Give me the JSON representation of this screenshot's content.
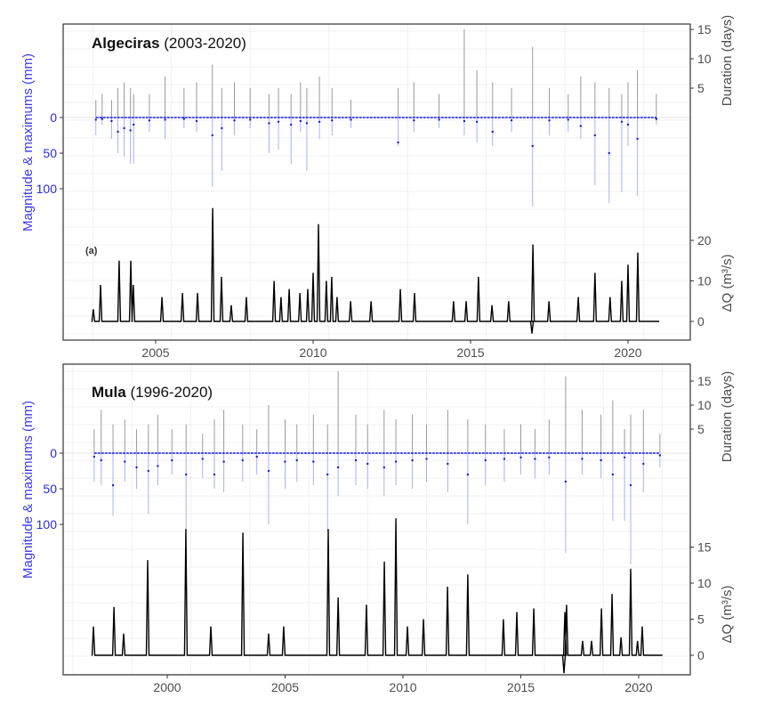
{
  "chart_data": [
    {
      "type": "line",
      "title_bold": "Algeciras",
      "title_rest": " (2003-2020)",
      "panel_label": "(a)",
      "ylabel_left": "Magnitude & maximums (mm)",
      "ylabel_right_top": "Duration (days)",
      "ylabel_right_bottom": "ΔQ (m³/s)",
      "x_ticks": [
        "2005",
        "2010",
        "2015",
        "2020"
      ],
      "magnitude_ticks": [
        "0",
        "50",
        "100"
      ],
      "duration_ticks": [
        "5",
        "10",
        "15"
      ],
      "dq_ticks": [
        "0",
        "10",
        "20"
      ],
      "xlim": [
        2002.7,
        2021.5
      ],
      "grid": true,
      "colors": {
        "duration": "#9a9a9a",
        "magnitude": "#aab0f5",
        "maximum": "#1a1ae6",
        "dq": "#000000"
      },
      "events_columns": [
        "year",
        "duration_days",
        "magnitude_mm",
        "maximum_mm"
      ],
      "events": [
        [
          2003.1,
          3,
          25,
          3
        ],
        [
          2003.3,
          4,
          10,
          2
        ],
        [
          2003.6,
          3,
          30,
          5
        ],
        [
          2003.8,
          5,
          50,
          20
        ],
        [
          2004.0,
          6,
          55,
          15
        ],
        [
          2004.2,
          5,
          65,
          18
        ],
        [
          2004.3,
          4,
          65,
          10
        ],
        [
          2004.8,
          4,
          20,
          4
        ],
        [
          2005.3,
          7,
          30,
          3
        ],
        [
          2005.9,
          5,
          15,
          2
        ],
        [
          2006.3,
          6,
          20,
          5
        ],
        [
          2006.8,
          9,
          97,
          25
        ],
        [
          2007.1,
          5,
          75,
          15
        ],
        [
          2007.5,
          6,
          25,
          4
        ],
        [
          2008.0,
          5,
          15,
          3
        ],
        [
          2008.6,
          4,
          50,
          8
        ],
        [
          2008.9,
          5,
          45,
          6
        ],
        [
          2009.3,
          4,
          65,
          10
        ],
        [
          2009.6,
          6,
          20,
          5
        ],
        [
          2009.8,
          5,
          75,
          8
        ],
        [
          2010.2,
          7,
          30,
          6
        ],
        [
          2010.6,
          5,
          25,
          4
        ],
        [
          2011.2,
          3,
          15,
          3
        ],
        [
          2012.7,
          5,
          40,
          35
        ],
        [
          2013.2,
          6,
          20,
          4
        ],
        [
          2014.0,
          4,
          15,
          3
        ],
        [
          2014.8,
          15,
          25,
          5
        ],
        [
          2015.2,
          8,
          35,
          6
        ],
        [
          2015.7,
          6,
          40,
          20
        ],
        [
          2016.3,
          5,
          20,
          4
        ],
        [
          2016.97,
          12,
          125,
          40
        ],
        [
          2017.5,
          5,
          25,
          4
        ],
        [
          2018.1,
          4,
          20,
          3
        ],
        [
          2018.5,
          7,
          30,
          12
        ],
        [
          2018.95,
          6,
          95,
          25
        ],
        [
          2019.4,
          5,
          120,
          50
        ],
        [
          2019.8,
          4,
          105,
          6
        ],
        [
          2020.0,
          6,
          40,
          10
        ],
        [
          2020.3,
          8,
          110,
          30
        ],
        [
          2020.9,
          4,
          10,
          2
        ]
      ],
      "dq_peaks_columns": [
        "year",
        "dq_m3s"
      ],
      "dq_peaks": [
        [
          2003.02,
          3
        ],
        [
          2003.25,
          9
        ],
        [
          2003.84,
          15
        ],
        [
          2004.21,
          15
        ],
        [
          2004.29,
          9
        ],
        [
          2005.2,
          6
        ],
        [
          2005.85,
          7
        ],
        [
          2006.33,
          7
        ],
        [
          2006.81,
          28
        ],
        [
          2007.09,
          11
        ],
        [
          2007.4,
          4
        ],
        [
          2007.88,
          6
        ],
        [
          2008.76,
          10
        ],
        [
          2008.98,
          6
        ],
        [
          2009.24,
          8
        ],
        [
          2009.58,
          7
        ],
        [
          2009.83,
          8
        ],
        [
          2010.0,
          12
        ],
        [
          2010.17,
          24
        ],
        [
          2010.42,
          10
        ],
        [
          2010.59,
          11
        ],
        [
          2010.76,
          6
        ],
        [
          2011.19,
          5
        ],
        [
          2011.84,
          5
        ],
        [
          2012.77,
          8
        ],
        [
          2013.22,
          7
        ],
        [
          2014.46,
          5
        ],
        [
          2014.86,
          5
        ],
        [
          2015.25,
          11
        ],
        [
          2015.68,
          4
        ],
        [
          2016.21,
          5
        ],
        [
          2016.95,
          -3
        ],
        [
          2016.98,
          19
        ],
        [
          2017.49,
          5
        ],
        [
          2018.42,
          6
        ],
        [
          2018.95,
          12
        ],
        [
          2019.43,
          6
        ],
        [
          2019.8,
          10
        ],
        [
          2020.0,
          14
        ],
        [
          2020.31,
          17
        ],
        [
          2020.95,
          0
        ]
      ]
    },
    {
      "type": "line",
      "title_bold": "Mula",
      "title_rest": " (1996-2020)",
      "ylabel_left": "Magnitude & maximums (mm)",
      "ylabel_right_top": "Duration (days)",
      "ylabel_right_bottom": "ΔQ (m³/s)",
      "x_ticks": [
        "2000",
        "2005",
        "2010",
        "2015",
        "2020"
      ],
      "magnitude_ticks": [
        "0",
        "50",
        "100"
      ],
      "duration_ticks": [
        "5",
        "10",
        "15"
      ],
      "dq_ticks": [
        "0",
        "5",
        "10",
        "15"
      ],
      "xlim": [
        1995.7,
        2022.2
      ],
      "grid": true,
      "colors": {
        "duration": "#9a9a9a",
        "magnitude": "#aab0f5",
        "maximum": "#1a1ae6",
        "dq": "#000000"
      },
      "events_columns": [
        "year",
        "duration_days",
        "magnitude_mm",
        "maximum_mm"
      ],
      "events": [
        [
          1996.9,
          5,
          40,
          5
        ],
        [
          1997.2,
          9,
          45,
          10
        ],
        [
          1997.7,
          6,
          88,
          45
        ],
        [
          1998.2,
          7,
          40,
          12
        ],
        [
          1998.7,
          5,
          50,
          20
        ],
        [
          1999.2,
          6,
          85,
          25
        ],
        [
          1999.6,
          8,
          45,
          18
        ],
        [
          2000.2,
          5,
          30,
          10
        ],
        [
          2000.8,
          6,
          120,
          30
        ],
        [
          2001.5,
          4,
          35,
          8
        ],
        [
          2002.0,
          7,
          50,
          30
        ],
        [
          2002.4,
          9,
          55,
          12
        ],
        [
          2003.2,
          6,
          40,
          10
        ],
        [
          2003.8,
          5,
          30,
          5
        ],
        [
          2004.3,
          10,
          100,
          25
        ],
        [
          2005.0,
          7,
          50,
          12
        ],
        [
          2005.5,
          6,
          40,
          10
        ],
        [
          2006.2,
          8,
          45,
          12
        ],
        [
          2006.8,
          6,
          110,
          30
        ],
        [
          2007.25,
          17,
          60,
          20
        ],
        [
          2008.0,
          8,
          45,
          10
        ],
        [
          2008.5,
          6,
          50,
          15
        ],
        [
          2009.2,
          9,
          60,
          20
        ],
        [
          2009.7,
          7,
          45,
          12
        ],
        [
          2010.4,
          8,
          50,
          10
        ],
        [
          2011.0,
          6,
          40,
          8
        ],
        [
          2011.9,
          9,
          55,
          15
        ],
        [
          2012.75,
          7,
          100,
          30
        ],
        [
          2013.5,
          6,
          45,
          10
        ],
        [
          2014.3,
          5,
          40,
          8
        ],
        [
          2015.0,
          6,
          30,
          6
        ],
        [
          2015.6,
          5,
          35,
          8
        ],
        [
          2016.2,
          7,
          30,
          6
        ],
        [
          2016.9,
          16,
          140,
          40
        ],
        [
          2017.6,
          9,
          30,
          8
        ],
        [
          2018.4,
          8,
          35,
          10
        ],
        [
          2018.9,
          11,
          95,
          30
        ],
        [
          2019.4,
          5,
          95,
          6
        ],
        [
          2019.66,
          8,
          156,
          45
        ],
        [
          2020.2,
          9,
          55,
          15
        ],
        [
          2020.9,
          4,
          20,
          3
        ]
      ],
      "dq_peaks_columns": [
        "year",
        "dq_m3s"
      ],
      "dq_peaks": [
        [
          1996.87,
          4
        ],
        [
          1997.74,
          6.7
        ],
        [
          1998.15,
          3
        ],
        [
          1999.17,
          13.2
        ],
        [
          2000.79,
          17.5
        ],
        [
          2001.85,
          4
        ],
        [
          2003.21,
          17
        ],
        [
          2004.3,
          3
        ],
        [
          2004.94,
          4
        ],
        [
          2006.83,
          17.5
        ],
        [
          2007.25,
          8
        ],
        [
          2008.45,
          7
        ],
        [
          2009.21,
          13
        ],
        [
          2009.7,
          19
        ],
        [
          2010.19,
          4
        ],
        [
          2010.87,
          5
        ],
        [
          2011.89,
          9.5
        ],
        [
          2012.75,
          11.2
        ],
        [
          2014.26,
          5
        ],
        [
          2014.83,
          6
        ],
        [
          2015.55,
          6.5
        ],
        [
          2016.83,
          -2.5
        ],
        [
          2016.87,
          6
        ],
        [
          2016.94,
          7
        ],
        [
          2017.62,
          2
        ],
        [
          2018.0,
          2
        ],
        [
          2018.42,
          6.5
        ],
        [
          2018.87,
          8.5
        ],
        [
          2019.25,
          2.5
        ],
        [
          2019.66,
          12
        ],
        [
          2019.95,
          2
        ],
        [
          2020.15,
          4
        ],
        [
          2020.95,
          0
        ]
      ]
    }
  ]
}
